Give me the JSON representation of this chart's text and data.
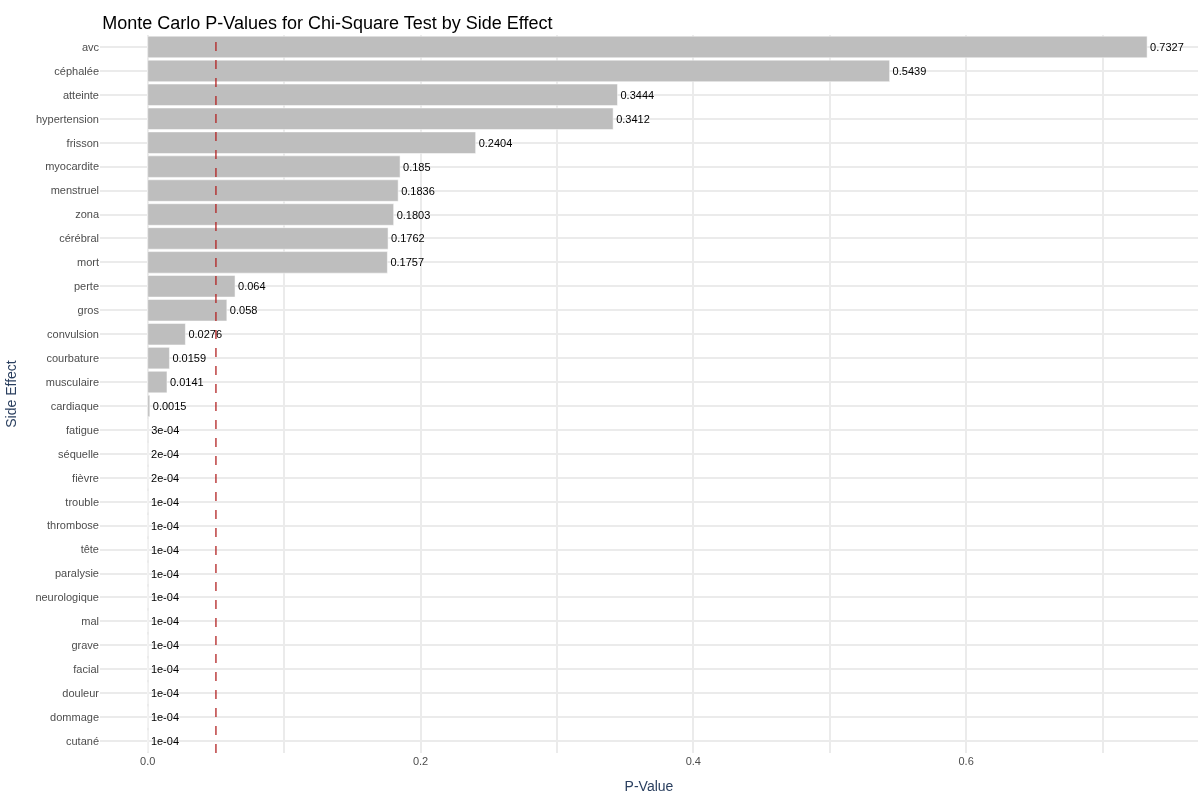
{
  "chart_data": {
    "type": "bar",
    "orientation": "horizontal",
    "title": "Monte Carlo P-Values for Chi-Square Test by Side Effect",
    "xlabel": "P-Value",
    "ylabel": "Side Effect",
    "categories": [
      "avc",
      "céphalée",
      "atteinte",
      "hypertension",
      "frisson",
      "myocardite",
      "menstruel",
      "zona",
      "cérébral",
      "mort",
      "perte",
      "gros",
      "convulsion",
      "courbature",
      "musculaire",
      "cardiaque",
      "fatigue",
      "séquelle",
      "fièvre",
      "trouble",
      "thrombose",
      "tête",
      "paralysie",
      "neurologique",
      "mal",
      "grave",
      "facial",
      "douleur",
      "dommage",
      "cutané"
    ],
    "values": [
      0.7327,
      0.5439,
      0.3444,
      0.3412,
      0.2404,
      0.185,
      0.1836,
      0.1803,
      0.1762,
      0.1757,
      0.064,
      0.058,
      0.0276,
      0.0159,
      0.0141,
      0.0015,
      0.0003,
      0.0002,
      0.0002,
      0.0001,
      0.0001,
      0.0001,
      0.0001,
      0.0001,
      0.0001,
      0.0001,
      0.0001,
      0.0001,
      0.0001,
      0.0001
    ],
    "value_labels": [
      "0.7327",
      "0.5439",
      "0.3444",
      "0.3412",
      "0.2404",
      "0.185",
      "0.1836",
      "0.1803",
      "0.1762",
      "0.1757",
      "0.064",
      "0.058",
      "0.0276",
      "0.0159",
      "0.0141",
      "0.0015",
      "3e-04",
      "2e-04",
      "2e-04",
      "1e-04",
      "1e-04",
      "1e-04",
      "1e-04",
      "1e-04",
      "1e-04",
      "1e-04",
      "1e-04",
      "1e-04",
      "1e-04",
      "1e-04"
    ],
    "color": "#bebebe",
    "xlim": [
      -0.035,
      0.77
    ],
    "xticks": [
      {
        "value": 0,
        "label": "0.0"
      },
      {
        "value": 0.1,
        "label": null
      },
      {
        "value": 0.2,
        "label": "0.2"
      },
      {
        "value": 0.3,
        "label": null
      },
      {
        "value": 0.4,
        "label": "0.4"
      },
      {
        "value": 0.5,
        "label": null
      },
      {
        "value": 0.6,
        "label": "0.6"
      },
      {
        "value": 0.7,
        "label": null
      }
    ],
    "ref_lines": [
      {
        "axis": "x",
        "value": 0.05,
        "label": null,
        "color": "#b22222",
        "line_style": "dashed"
      }
    ],
    "grid": true,
    "legend": false
  }
}
